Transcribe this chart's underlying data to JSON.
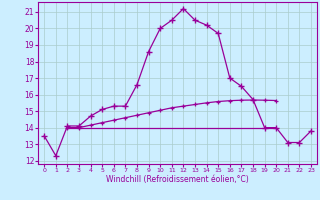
{
  "xlabel": "Windchill (Refroidissement éolien,°C)",
  "background_color": "#cceeff",
  "grid_color": "#aacccc",
  "line_color": "#990099",
  "xlim": [
    -0.5,
    23.5
  ],
  "ylim": [
    11.8,
    21.6
  ],
  "xticks": [
    0,
    1,
    2,
    3,
    4,
    5,
    6,
    7,
    8,
    9,
    10,
    11,
    12,
    13,
    14,
    15,
    16,
    17,
    18,
    19,
    20,
    21,
    22,
    23
  ],
  "yticks": [
    12,
    13,
    14,
    15,
    16,
    17,
    18,
    19,
    20,
    21
  ],
  "curve1_x": [
    0,
    1,
    2,
    3,
    4,
    5,
    6,
    7,
    8,
    9,
    10,
    11,
    12,
    13,
    14,
    15,
    16,
    17,
    18,
    19,
    20,
    21,
    22,
    23
  ],
  "curve1_y": [
    13.5,
    12.3,
    14.1,
    14.1,
    14.7,
    15.1,
    15.3,
    15.3,
    16.6,
    18.6,
    20.0,
    20.5,
    21.2,
    20.5,
    20.2,
    19.7,
    17.0,
    16.5,
    15.7,
    14.0,
    14.0,
    13.1,
    13.1,
    13.8
  ],
  "curve2_x": [
    2,
    3,
    4,
    5,
    6,
    7,
    8,
    9,
    10,
    11,
    12,
    13,
    14,
    15,
    16,
    17,
    18,
    19,
    20
  ],
  "curve2_y": [
    14.0,
    14.0,
    14.15,
    14.3,
    14.45,
    14.6,
    14.75,
    14.9,
    15.05,
    15.2,
    15.3,
    15.4,
    15.5,
    15.58,
    15.63,
    15.66,
    15.67,
    15.66,
    15.64
  ],
  "curve3_x": [
    2,
    3,
    4,
    5,
    6,
    7,
    8,
    9,
    10,
    11,
    12,
    13,
    14,
    15,
    16,
    17,
    18,
    19,
    20
  ],
  "curve3_y": [
    14.0,
    14.0,
    14.0,
    14.0,
    14.0,
    14.0,
    14.0,
    14.0,
    14.0,
    14.0,
    14.0,
    14.0,
    14.0,
    14.0,
    14.0,
    14.0,
    14.0,
    14.0,
    14.0
  ]
}
